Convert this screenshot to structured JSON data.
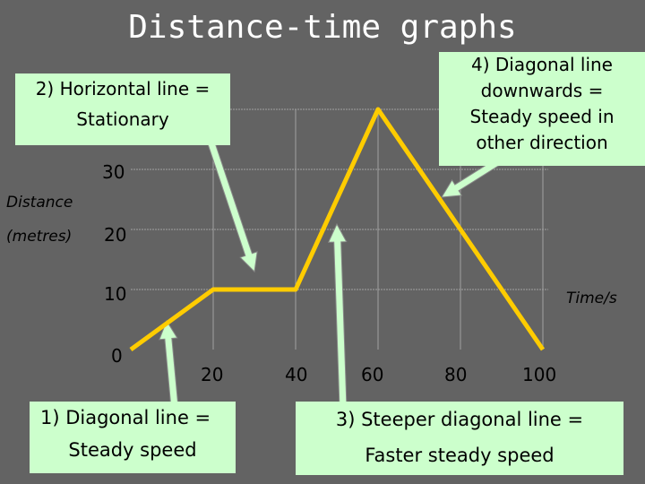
{
  "title": "Distance-time graphs",
  "chart_data": {
    "type": "line",
    "x": [
      0,
      20,
      40,
      60,
      80,
      100
    ],
    "y": [
      0,
      10,
      10,
      40,
      20,
      0
    ],
    "xticks": [
      "20",
      "40",
      "60",
      "80",
      "100"
    ],
    "yticks": [
      "0",
      "10",
      "20",
      "30"
    ],
    "xlabel": "Time/s",
    "ylabel": [
      "Distance",
      "(metres)"
    ],
    "grid": true,
    "colors": {
      "line": "#ffcc00",
      "grid": "#a0a0a0"
    }
  },
  "annotations": {
    "a1": [
      "1)  Diagonal line =",
      "Steady speed"
    ],
    "a2": [
      "2) Horizontal line =",
      "Stationary"
    ],
    "a3": [
      "3) Steeper diagonal line =",
      "Faster steady speed"
    ],
    "a4": [
      "4) Diagonal line",
      "downwards =",
      "Steady speed in",
      "other direction"
    ]
  },
  "colors": {
    "background": "#636363",
    "box": "#ccffcc",
    "arrow": "#ccffcc"
  }
}
